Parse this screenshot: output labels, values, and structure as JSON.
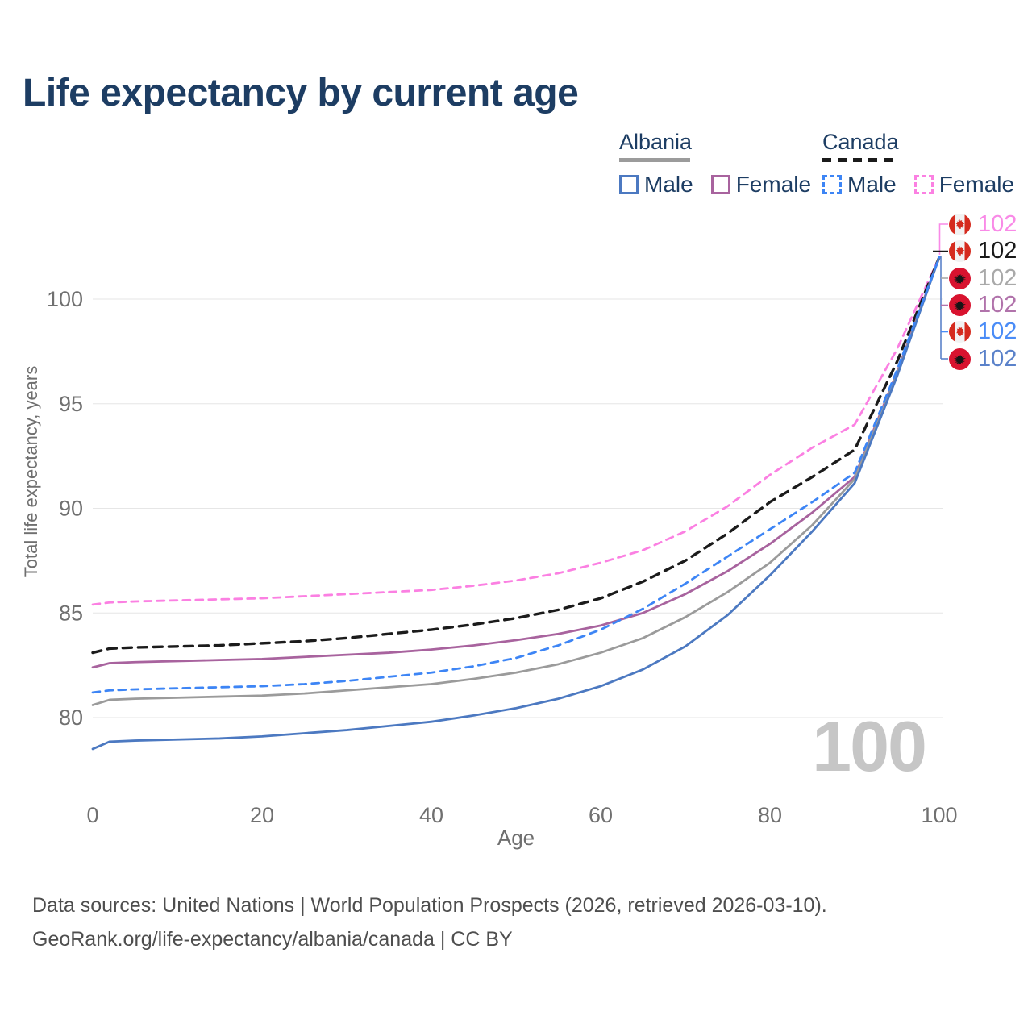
{
  "header": {
    "title": "Life expectancy by current age"
  },
  "legend": {
    "albania": {
      "title": "Albania",
      "male": "Male",
      "female": "Female"
    },
    "canada": {
      "title": "Canada",
      "male": "Male",
      "female": "Female"
    }
  },
  "chart_data": {
    "type": "line",
    "title": "Life expectancy by current age",
    "xlabel": "Age",
    "ylabel": "Total life expectancy, years",
    "xlim": [
      0,
      100
    ],
    "ylim": [
      78,
      102.5
    ],
    "x_ticks": [
      0,
      20,
      40,
      60,
      80,
      100
    ],
    "y_ticks": [
      80,
      85,
      90,
      95,
      100
    ],
    "grid": "horizontal",
    "legend_position": "top-right",
    "ages": [
      0,
      2,
      5,
      10,
      15,
      20,
      25,
      30,
      35,
      40,
      45,
      50,
      55,
      60,
      65,
      70,
      75,
      80,
      85,
      90,
      95,
      100
    ],
    "series": [
      {
        "id": "canada_female",
        "name": "Canada — Female",
        "country": "Canada",
        "sex": "Female",
        "color": "#fb80e2",
        "dash": true,
        "end_value": 102,
        "values": [
          85.4,
          85.5,
          85.55,
          85.6,
          85.65,
          85.7,
          85.8,
          85.9,
          86.0,
          86.1,
          86.3,
          86.55,
          86.9,
          87.4,
          88.0,
          88.9,
          90.1,
          91.6,
          92.9,
          94.0,
          97.6,
          102
        ]
      },
      {
        "id": "canada_both",
        "name": "Canada — Both sexes",
        "country": "Canada",
        "sex": "Both",
        "color": "#1b1b1b",
        "dash": true,
        "end_value": 102,
        "values": [
          83.1,
          83.3,
          83.35,
          83.4,
          83.45,
          83.55,
          83.65,
          83.8,
          84.0,
          84.2,
          84.45,
          84.75,
          85.15,
          85.7,
          86.5,
          87.5,
          88.8,
          90.3,
          91.5,
          92.8,
          97.0,
          102
        ]
      },
      {
        "id": "albania_female",
        "name": "Albania — Female",
        "country": "Albania",
        "sex": "Female",
        "color": "#a8639e",
        "dash": false,
        "end_value": 102,
        "values": [
          82.4,
          82.6,
          82.65,
          82.7,
          82.75,
          82.8,
          82.9,
          83.0,
          83.1,
          83.25,
          83.45,
          83.7,
          84.0,
          84.4,
          85.0,
          85.9,
          87.0,
          88.3,
          89.8,
          91.5,
          96.5,
          102
        ]
      },
      {
        "id": "albania_both",
        "name": "Albania — Both sexes",
        "country": "Albania",
        "sex": "Both",
        "color": "#9b9b9b",
        "dash": false,
        "end_value": 102,
        "values": [
          80.6,
          80.85,
          80.9,
          80.95,
          81.0,
          81.05,
          81.15,
          81.3,
          81.45,
          81.6,
          81.85,
          82.15,
          82.55,
          83.1,
          83.8,
          84.8,
          86.0,
          87.4,
          89.2,
          91.4,
          96.4,
          102
        ]
      },
      {
        "id": "albania_male",
        "name": "Albania — Male",
        "country": "Albania",
        "sex": "Male",
        "color": "#4c79c1",
        "dash": false,
        "end_value": 102,
        "values": [
          78.5,
          78.85,
          78.9,
          78.95,
          79.0,
          79.1,
          79.25,
          79.4,
          79.6,
          79.8,
          80.1,
          80.45,
          80.9,
          81.5,
          82.3,
          83.4,
          84.9,
          86.8,
          88.9,
          91.2,
          96.3,
          102
        ]
      },
      {
        "id": "canada_male",
        "name": "Canada — Male",
        "country": "Canada",
        "sex": "Male",
        "color": "#3d85f5",
        "dash": true,
        "end_value": 102,
        "values": [
          81.2,
          81.3,
          81.35,
          81.4,
          81.45,
          81.5,
          81.6,
          81.75,
          81.95,
          82.15,
          82.45,
          82.85,
          83.45,
          84.2,
          85.2,
          86.4,
          87.7,
          89.0,
          90.3,
          91.7,
          96.6,
          102
        ]
      }
    ]
  },
  "end_labels": [
    {
      "series": "canada_female",
      "flag": "canada",
      "value": "102",
      "color": "#f98ae7"
    },
    {
      "series": "canada_both",
      "flag": "canada",
      "value": "102",
      "color": "#1a1a1a"
    },
    {
      "series": "albania_both",
      "flag": "albania",
      "value": "102",
      "color": "#a9a9a9"
    },
    {
      "series": "albania_female",
      "flag": "albania",
      "value": "102",
      "color": "#b173ab"
    },
    {
      "series": "canada_male",
      "flag": "canada",
      "value": "102",
      "color": "#4a8cf7"
    },
    {
      "series": "albania_male",
      "flag": "albania",
      "value": "102",
      "color": "#5b82ca"
    }
  ],
  "watermark": "100",
  "footer": {
    "line1": "Data sources: United Nations | World Population Prospects (2026, retrieved 2026-03-10).",
    "line2": "GeoRank.org/life-expectancy/albania/canada | CC BY"
  },
  "colors": {
    "title_text": "#1d3d63",
    "tick_text": "#707070",
    "gridline": "#e6e6e6",
    "footer_text": "#4e4e4e",
    "watermark": "#c6c6c6",
    "canada_flag_red": "#d52b1e",
    "albania_flag_red": "#d8132f"
  }
}
